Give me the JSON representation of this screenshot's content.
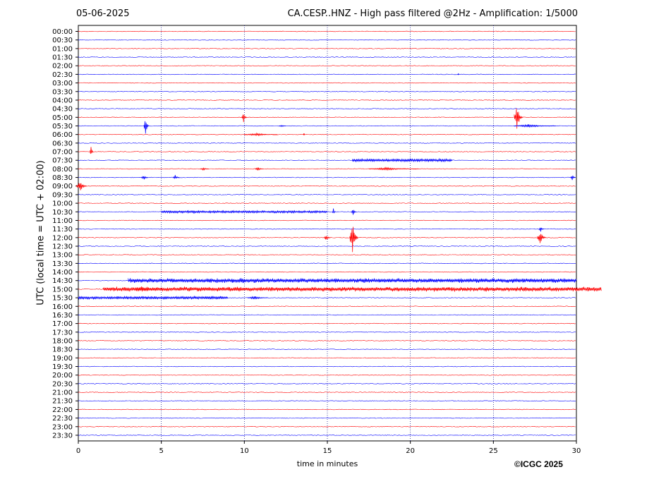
{
  "header": {
    "date": "05-06-2025",
    "title": "CA.CESP..HNZ - High pass filtered @2Hz - Amplification: 1/5000"
  },
  "footer": {
    "copyright": "©ICGC 2025"
  },
  "chart_data": {
    "type": "line",
    "title": "CA.CESP..HNZ - High pass filtered @2Hz - Amplification: 1/5000",
    "xlabel": "time in minutes",
    "ylabel": "UTC (local time = UTC + 02:00)",
    "xlim": [
      0,
      30
    ],
    "x_ticks": [
      0,
      5,
      10,
      15,
      20,
      25,
      30
    ],
    "grid": "vertical dotted at 5-minute intervals",
    "rows": [
      "00:00",
      "00:30",
      "01:00",
      "01:30",
      "02:00",
      "02:30",
      "03:00",
      "03:30",
      "04:00",
      "04:30",
      "05:00",
      "05:30",
      "06:00",
      "06:30",
      "07:00",
      "07:30",
      "08:00",
      "08:30",
      "09:00",
      "09:30",
      "10:00",
      "10:30",
      "11:00",
      "11:30",
      "12:00",
      "12:30",
      "13:00",
      "13:30",
      "14:00",
      "14:30",
      "15:00",
      "15:30",
      "16:00",
      "16:30",
      "17:00",
      "17:30",
      "18:00",
      "18:30",
      "19:00",
      "19:30",
      "20:00",
      "20:30",
      "21:00",
      "21:30",
      "22:00",
      "22:30",
      "23:00",
      "23:30"
    ],
    "row_colors": [
      "#ff0000",
      "#0000ff"
    ],
    "events": [
      {
        "row": "02:30",
        "minute": 22.9,
        "amplitude": 0.2,
        "duration": 0.1
      },
      {
        "row": "05:00",
        "minute": 10.0,
        "amplitude": 1.3,
        "duration": 0.3
      },
      {
        "row": "05:00",
        "minute": 26.5,
        "amplitude": 3.9,
        "duration": 0.5
      },
      {
        "row": "05:30",
        "minute": 4.1,
        "amplitude": 2.2,
        "duration": 0.3
      },
      {
        "row": "05:30",
        "minute": 27.5,
        "amplitude": 0.4,
        "duration": 2.5
      },
      {
        "row": "05:30",
        "minute": 12.3,
        "amplitude": 0.3,
        "duration": 0.4
      },
      {
        "row": "06:00",
        "minute": 11.0,
        "amplitude": 0.35,
        "duration": 2.0
      },
      {
        "row": "06:00",
        "minute": 13.6,
        "amplitude": 0.5,
        "duration": 0.1
      },
      {
        "row": "07:00",
        "minute": 0.8,
        "amplitude": 1.8,
        "duration": 0.2
      },
      {
        "row": "07:30",
        "minute": 19.5,
        "amplitude": 0.4,
        "duration": 6.0
      },
      {
        "row": "08:00",
        "minute": 7.6,
        "amplitude": 0.4,
        "duration": 0.5
      },
      {
        "row": "08:00",
        "minute": 10.9,
        "amplitude": 0.5,
        "duration": 0.5
      },
      {
        "row": "08:00",
        "minute": 19.0,
        "amplitude": 0.35,
        "duration": 3.0
      },
      {
        "row": "08:30",
        "minute": 4.0,
        "amplitude": 0.7,
        "duration": 0.4
      },
      {
        "row": "08:30",
        "minute": 5.9,
        "amplitude": 0.7,
        "duration": 0.4
      },
      {
        "row": "08:30",
        "minute": 29.8,
        "amplitude": 0.8,
        "duration": 0.3
      },
      {
        "row": "09:00",
        "minute": 0.2,
        "amplitude": 1.6,
        "duration": 0.6
      },
      {
        "row": "10:30",
        "minute": 10.0,
        "amplitude": 0.3,
        "duration": 10.0
      },
      {
        "row": "10:30",
        "minute": 15.4,
        "amplitude": 1.0,
        "duration": 0.2
      },
      {
        "row": "10:30",
        "minute": 16.6,
        "amplitude": 0.8,
        "duration": 0.3
      },
      {
        "row": "11:30",
        "minute": 27.9,
        "amplitude": 0.7,
        "duration": 0.3
      },
      {
        "row": "12:00",
        "minute": 15.0,
        "amplitude": 0.7,
        "duration": 0.4
      },
      {
        "row": "12:00",
        "minute": 16.6,
        "amplitude": 4.2,
        "duration": 0.5
      },
      {
        "row": "12:00",
        "minute": 27.9,
        "amplitude": 2.0,
        "duration": 0.5
      },
      {
        "row": "14:30",
        "minute": 16.5,
        "amplitude": 0.6,
        "duration": 27.0
      },
      {
        "row": "15:00",
        "minute": 16.5,
        "amplitude": 0.6,
        "duration": 30.0
      },
      {
        "row": "15:00",
        "minute": 4.0,
        "amplitude": 0.8,
        "duration": 1.2
      },
      {
        "row": "15:30",
        "minute": 4.5,
        "amplitude": 0.4,
        "duration": 9.0
      },
      {
        "row": "15:30",
        "minute": 10.8,
        "amplitude": 0.5,
        "duration": 1.2
      }
    ]
  }
}
